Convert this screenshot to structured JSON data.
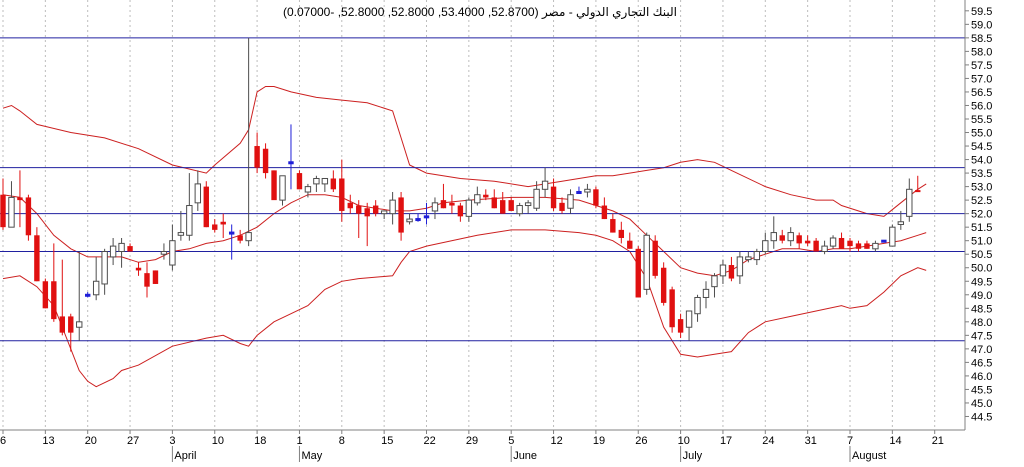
{
  "chart_data": {
    "type": "candlestick",
    "title": "البنك التجاري الدولي - مصر (52.8700, 53.4000, 52.8000, 52.8000, -0.07000)",
    "ylim": [
      44.0,
      59.9
    ],
    "y_ticks": [
      "44.5",
      "45.0",
      "45.5",
      "46.0",
      "46.5",
      "47.0",
      "47.5",
      "48.0",
      "48.5",
      "49.0",
      "49.5",
      "50.0",
      "50.5",
      "51.0",
      "51.5",
      "52.0",
      "52.5",
      "53.0",
      "53.5",
      "54.0",
      "54.5",
      "55.0",
      "55.5",
      "56.0",
      "56.5",
      "57.0",
      "57.5",
      "58.0",
      "58.5",
      "59.0",
      "59.5"
    ],
    "x_ticks": [
      "6",
      "13",
      "20",
      "27",
      "3",
      "10",
      "18",
      "1",
      "8",
      "15",
      "22",
      "29",
      "5",
      "12",
      "19",
      "26",
      "10",
      "17",
      "24",
      "31",
      "7",
      "14",
      "21"
    ],
    "x_ticks_slot": [
      0,
      5,
      10,
      15,
      20,
      25,
      30,
      35,
      40,
      45,
      50,
      55,
      60,
      65,
      70,
      75,
      80,
      85,
      90,
      95,
      100,
      105,
      110
    ],
    "months": [
      "April",
      "May",
      "June",
      "July",
      "August"
    ],
    "months_slot": [
      20,
      35,
      60,
      80,
      100
    ],
    "horizontal_lines": [
      58.5,
      53.7,
      52.0,
      50.6,
      47.3
    ],
    "colors": {
      "up": "#ffffff",
      "down": "#e01010",
      "outline": "#4d4d4d",
      "doji": "#1f1fd8",
      "band": "#cc2020",
      "hline": "#2020a0",
      "grid": "#bdbdbd",
      "axis": "#808080"
    },
    "candles": [
      {
        "o": 52.7,
        "h": 53.3,
        "l": 51.4,
        "c": 51.5
      },
      {
        "o": 51.5,
        "h": 53.2,
        "l": 51.5,
        "c": 52.6
      },
      {
        "o": 52.6,
        "h": 53.6,
        "l": 51.5,
        "c": 52.5
      },
      {
        "o": 52.6,
        "h": 52.7,
        "l": 51.0,
        "c": 51.2
      },
      {
        "o": 51.2,
        "h": 51.5,
        "l": 49.5,
        "c": 49.5
      },
      {
        "o": 49.5,
        "h": 49.6,
        "l": 48.5,
        "c": 48.5
      },
      {
        "o": 49.5,
        "h": 50.9,
        "l": 48.0,
        "c": 48.1
      },
      {
        "o": 48.2,
        "h": 50.3,
        "l": 47.5,
        "c": 47.6
      },
      {
        "o": 48.2,
        "h": 48.3,
        "l": 46.9,
        "c": 47.6
      },
      {
        "o": 47.8,
        "h": 50.6,
        "l": 47.3,
        "c": 48.0
      },
      {
        "o": 49.0,
        "h": 49.1,
        "l": 48.9,
        "c": 49.0
      },
      {
        "o": 49.0,
        "h": 50.4,
        "l": 48.8,
        "c": 49.5
      },
      {
        "o": 49.4,
        "h": 50.7,
        "l": 49.0,
        "c": 50.6
      },
      {
        "o": 50.4,
        "h": 51.1,
        "l": 50.1,
        "c": 50.8
      },
      {
        "o": 50.6,
        "h": 51.1,
        "l": 50.0,
        "c": 50.9
      },
      {
        "o": 50.8,
        "h": 50.9,
        "l": 50.6,
        "c": 50.6
      },
      {
        "o": 50.0,
        "h": 50.2,
        "l": 49.7,
        "c": 49.9
      },
      {
        "o": 49.8,
        "h": 50.2,
        "l": 48.9,
        "c": 49.3
      },
      {
        "o": 49.9,
        "h": 49.9,
        "l": 49.4,
        "c": 49.4
      },
      {
        "o": 50.5,
        "h": 50.9,
        "l": 50.3,
        "c": 50.6
      },
      {
        "o": 50.1,
        "h": 51.6,
        "l": 49.9,
        "c": 51.0
      },
      {
        "o": 51.2,
        "h": 52.1,
        "l": 51.0,
        "c": 51.3
      },
      {
        "o": 51.2,
        "h": 53.5,
        "l": 51.0,
        "c": 52.3
      },
      {
        "o": 52.4,
        "h": 53.6,
        "l": 52.1,
        "c": 53.1
      },
      {
        "o": 53.0,
        "h": 53.2,
        "l": 51.5,
        "c": 51.5
      },
      {
        "o": 51.6,
        "h": 51.8,
        "l": 51.3,
        "c": 51.4
      },
      {
        "o": 51.7,
        "h": 52.0,
        "l": 51.1,
        "c": 51.6
      },
      {
        "o": 51.3,
        "h": 51.6,
        "l": 50.3,
        "c": 51.3
      },
      {
        "o": 51.2,
        "h": 51.4,
        "l": 50.9,
        "c": 51.0
      },
      {
        "o": 51.0,
        "h": 58.5,
        "l": 50.8,
        "c": 51.3
      },
      {
        "o": 54.5,
        "h": 55.0,
        "l": 53.5,
        "c": 53.7
      },
      {
        "o": 54.4,
        "h": 54.6,
        "l": 53.3,
        "c": 53.5
      },
      {
        "o": 53.6,
        "h": 53.6,
        "l": 52.6,
        "c": 52.5
      },
      {
        "o": 52.5,
        "h": 53.4,
        "l": 52.3,
        "c": 53.4
      },
      {
        "o": 53.9,
        "h": 55.3,
        "l": 52.9,
        "c": 53.9
      },
      {
        "o": 53.5,
        "h": 53.6,
        "l": 52.9,
        "c": 52.9
      },
      {
        "o": 52.8,
        "h": 53.1,
        "l": 52.6,
        "c": 53.0
      },
      {
        "o": 53.1,
        "h": 53.4,
        "l": 52.8,
        "c": 53.3
      },
      {
        "o": 53.1,
        "h": 53.3,
        "l": 52.8,
        "c": 53.3
      },
      {
        "o": 53.3,
        "h": 53.6,
        "l": 52.8,
        "c": 52.9
      },
      {
        "o": 53.3,
        "h": 54.0,
        "l": 51.7,
        "c": 52.1
      },
      {
        "o": 52.4,
        "h": 52.7,
        "l": 52.0,
        "c": 52.2
      },
      {
        "o": 52.3,
        "h": 52.5,
        "l": 51.1,
        "c": 52.0
      },
      {
        "o": 52.2,
        "h": 52.4,
        "l": 50.8,
        "c": 51.9
      },
      {
        "o": 52.3,
        "h": 52.5,
        "l": 51.9,
        "c": 52.0
      },
      {
        "o": 52.0,
        "h": 52.1,
        "l": 51.8,
        "c": 52.1
      },
      {
        "o": 52.0,
        "h": 52.8,
        "l": 51.6,
        "c": 52.5
      },
      {
        "o": 52.6,
        "h": 52.8,
        "l": 51.0,
        "c": 51.3
      },
      {
        "o": 51.7,
        "h": 52.0,
        "l": 51.6,
        "c": 51.8
      },
      {
        "o": 51.8,
        "h": 52.0,
        "l": 51.7,
        "c": 51.8
      },
      {
        "o": 51.9,
        "h": 52.4,
        "l": 51.6,
        "c": 51.9
      },
      {
        "o": 52.1,
        "h": 52.6,
        "l": 51.8,
        "c": 52.4
      },
      {
        "o": 52.5,
        "h": 53.1,
        "l": 52.2,
        "c": 52.2
      },
      {
        "o": 52.4,
        "h": 52.7,
        "l": 52.0,
        "c": 52.3
      },
      {
        "o": 52.3,
        "h": 52.4,
        "l": 51.7,
        "c": 51.9
      },
      {
        "o": 51.9,
        "h": 52.6,
        "l": 51.7,
        "c": 52.5
      },
      {
        "o": 52.4,
        "h": 53.0,
        "l": 52.3,
        "c": 52.7
      },
      {
        "o": 52.7,
        "h": 52.9,
        "l": 52.5,
        "c": 52.6
      },
      {
        "o": 52.6,
        "h": 52.9,
        "l": 52.2,
        "c": 52.2
      },
      {
        "o": 52.5,
        "h": 52.8,
        "l": 52.0,
        "c": 52.0
      },
      {
        "o": 52.5,
        "h": 52.6,
        "l": 52.1,
        "c": 52.1
      },
      {
        "o": 52.0,
        "h": 52.4,
        "l": 51.9,
        "c": 52.3
      },
      {
        "o": 52.3,
        "h": 52.5,
        "l": 52.0,
        "c": 52.4
      },
      {
        "o": 52.2,
        "h": 53.2,
        "l": 52.1,
        "c": 52.9
      },
      {
        "o": 52.9,
        "h": 53.7,
        "l": 52.6,
        "c": 53.2
      },
      {
        "o": 53.0,
        "h": 53.3,
        "l": 52.1,
        "c": 52.2
      },
      {
        "o": 52.4,
        "h": 52.6,
        "l": 52.0,
        "c": 52.1
      },
      {
        "o": 52.2,
        "h": 52.9,
        "l": 52.0,
        "c": 52.7
      },
      {
        "o": 52.8,
        "h": 53.0,
        "l": 52.8,
        "c": 52.8
      },
      {
        "o": 52.8,
        "h": 53.1,
        "l": 52.6,
        "c": 52.9
      },
      {
        "o": 52.9,
        "h": 53.0,
        "l": 52.2,
        "c": 52.3
      },
      {
        "o": 52.3,
        "h": 52.6,
        "l": 51.8,
        "c": 51.8
      },
      {
        "o": 51.8,
        "h": 52.0,
        "l": 51.3,
        "c": 51.3
      },
      {
        "o": 51.4,
        "h": 51.7,
        "l": 50.9,
        "c": 51.1
      },
      {
        "o": 51.0,
        "h": 51.3,
        "l": 50.7,
        "c": 50.7
      },
      {
        "o": 50.7,
        "h": 50.8,
        "l": 48.9,
        "c": 48.9
      },
      {
        "o": 49.2,
        "h": 51.3,
        "l": 49.0,
        "c": 51.2
      },
      {
        "o": 51.0,
        "h": 51.2,
        "l": 49.6,
        "c": 49.7
      },
      {
        "o": 50.0,
        "h": 50.2,
        "l": 48.6,
        "c": 48.7
      },
      {
        "o": 49.2,
        "h": 49.3,
        "l": 47.6,
        "c": 47.8
      },
      {
        "o": 48.1,
        "h": 48.3,
        "l": 47.4,
        "c": 47.6
      },
      {
        "o": 47.8,
        "h": 48.4,
        "l": 47.3,
        "c": 48.4
      },
      {
        "o": 48.3,
        "h": 49.0,
        "l": 48.0,
        "c": 48.9
      },
      {
        "o": 48.9,
        "h": 49.5,
        "l": 48.5,
        "c": 49.2
      },
      {
        "o": 49.3,
        "h": 49.8,
        "l": 48.9,
        "c": 49.7
      },
      {
        "o": 49.7,
        "h": 50.3,
        "l": 49.4,
        "c": 50.1
      },
      {
        "o": 50.1,
        "h": 50.4,
        "l": 49.5,
        "c": 49.6
      },
      {
        "o": 49.7,
        "h": 50.6,
        "l": 49.4,
        "c": 50.4
      },
      {
        "o": 50.3,
        "h": 50.6,
        "l": 50.2,
        "c": 50.4
      },
      {
        "o": 50.3,
        "h": 50.7,
        "l": 50.1,
        "c": 50.6
      },
      {
        "o": 50.6,
        "h": 51.3,
        "l": 50.5,
        "c": 51.0
      },
      {
        "o": 51.0,
        "h": 51.9,
        "l": 50.7,
        "c": 51.3
      },
      {
        "o": 51.2,
        "h": 51.4,
        "l": 50.9,
        "c": 51.0
      },
      {
        "o": 51.0,
        "h": 51.5,
        "l": 50.8,
        "c": 51.3
      },
      {
        "o": 51.2,
        "h": 51.3,
        "l": 50.7,
        "c": 50.9
      },
      {
        "o": 51.0,
        "h": 51.2,
        "l": 50.8,
        "c": 50.9
      },
      {
        "o": 51.0,
        "h": 51.1,
        "l": 50.6,
        "c": 50.6
      },
      {
        "o": 50.6,
        "h": 51.0,
        "l": 50.5,
        "c": 50.8
      },
      {
        "o": 50.8,
        "h": 51.2,
        "l": 50.7,
        "c": 51.1
      },
      {
        "o": 51.1,
        "h": 51.3,
        "l": 50.7,
        "c": 50.7
      },
      {
        "o": 51.0,
        "h": 51.1,
        "l": 50.6,
        "c": 50.8
      },
      {
        "o": 50.9,
        "h": 51.0,
        "l": 50.6,
        "c": 50.7
      },
      {
        "o": 50.9,
        "h": 51.0,
        "l": 50.7,
        "c": 50.7
      },
      {
        "o": 50.7,
        "h": 51.0,
        "l": 50.6,
        "c": 50.9
      },
      {
        "o": 51.0,
        "h": 51.0,
        "l": 51.0,
        "c": 51.0
      },
      {
        "o": 50.8,
        "h": 51.6,
        "l": 50.8,
        "c": 51.5
      },
      {
        "o": 51.6,
        "h": 52.1,
        "l": 51.4,
        "c": 51.7
      },
      {
        "o": 51.9,
        "h": 53.3,
        "l": 51.7,
        "c": 52.9
      },
      {
        "o": 52.87,
        "h": 53.4,
        "l": 52.8,
        "c": 52.8
      }
    ],
    "upper_band": [
      [
        0,
        55.9
      ],
      [
        1,
        56.0
      ],
      [
        2,
        55.8
      ],
      [
        4,
        55.3
      ],
      [
        8,
        55.0
      ],
      [
        12,
        54.8
      ],
      [
        16,
        54.4
      ],
      [
        20,
        53.8
      ],
      [
        24,
        53.5
      ],
      [
        25,
        53.8
      ],
      [
        28,
        54.6
      ],
      [
        29,
        55.1
      ],
      [
        30,
        56.5
      ],
      [
        31,
        56.7
      ],
      [
        32,
        56.7
      ],
      [
        34,
        56.5
      ],
      [
        37,
        56.3
      ],
      [
        40,
        56.2
      ],
      [
        43,
        56.1
      ],
      [
        46,
        55.8
      ],
      [
        47,
        54.8
      ],
      [
        48,
        53.8
      ],
      [
        50,
        53.5
      ],
      [
        54,
        53.3
      ],
      [
        58,
        53.2
      ],
      [
        62,
        53.0
      ],
      [
        66,
        53.2
      ],
      [
        70,
        53.4
      ],
      [
        72,
        53.4
      ],
      [
        76,
        53.6
      ],
      [
        78,
        53.7
      ],
      [
        80,
        53.9
      ],
      [
        82,
        54.0
      ],
      [
        84,
        53.9
      ],
      [
        86,
        53.6
      ],
      [
        90,
        53.0
      ],
      [
        93,
        52.7
      ],
      [
        96,
        52.5
      ],
      [
        98,
        52.5
      ],
      [
        99,
        52.3
      ],
      [
        102,
        52.0
      ],
      [
        104,
        51.9
      ],
      [
        106,
        52.4
      ],
      [
        108,
        52.9
      ],
      [
        109,
        53.1
      ]
    ],
    "lower_band": [
      [
        0,
        49.6
      ],
      [
        2,
        49.7
      ],
      [
        4,
        49.3
      ],
      [
        6,
        48.6
      ],
      [
        8,
        47.0
      ],
      [
        9,
        46.2
      ],
      [
        10,
        45.8
      ],
      [
        11,
        45.6
      ],
      [
        13,
        45.9
      ],
      [
        14,
        46.2
      ],
      [
        16,
        46.4
      ],
      [
        20,
        47.1
      ],
      [
        24,
        47.4
      ],
      [
        26,
        47.5
      ],
      [
        28,
        47.2
      ],
      [
        29,
        47.1
      ],
      [
        30,
        47.5
      ],
      [
        32,
        48.0
      ],
      [
        34,
        48.3
      ],
      [
        36,
        48.6
      ],
      [
        38,
        49.2
      ],
      [
        40,
        49.5
      ],
      [
        42,
        49.6
      ],
      [
        46,
        49.7
      ],
      [
        47,
        50.2
      ],
      [
        48,
        50.6
      ],
      [
        50,
        50.8
      ],
      [
        56,
        51.2
      ],
      [
        60,
        51.4
      ],
      [
        64,
        51.4
      ],
      [
        68,
        51.3
      ],
      [
        70,
        51.2
      ],
      [
        72,
        51.0
      ],
      [
        74,
        50.6
      ],
      [
        76,
        49.6
      ],
      [
        78,
        47.8
      ],
      [
        80,
        46.8
      ],
      [
        82,
        46.7
      ],
      [
        84,
        46.8
      ],
      [
        86,
        46.9
      ],
      [
        88,
        47.6
      ],
      [
        90,
        48.0
      ],
      [
        93,
        48.2
      ],
      [
        96,
        48.4
      ],
      [
        99,
        48.6
      ],
      [
        100,
        48.5
      ],
      [
        102,
        48.6
      ],
      [
        104,
        49.1
      ],
      [
        106,
        49.7
      ],
      [
        108,
        50.0
      ],
      [
        109,
        49.9
      ]
    ],
    "middle_band": [
      [
        0,
        52.7
      ],
      [
        2,
        52.6
      ],
      [
        4,
        52.0
      ],
      [
        6,
        51.2
      ],
      [
        8,
        50.7
      ],
      [
        10,
        50.4
      ],
      [
        12,
        50.4
      ],
      [
        14,
        50.4
      ],
      [
        16,
        50.2
      ],
      [
        18,
        50.3
      ],
      [
        20,
        50.6
      ],
      [
        22,
        50.7
      ],
      [
        24,
        50.9
      ],
      [
        26,
        51.0
      ],
      [
        28,
        51.2
      ],
      [
        30,
        51.5
      ],
      [
        32,
        52.0
      ],
      [
        34,
        52.4
      ],
      [
        36,
        52.7
      ],
      [
        38,
        52.7
      ],
      [
        40,
        52.6
      ],
      [
        42,
        52.3
      ],
      [
        44,
        52.2
      ],
      [
        46,
        52.1
      ],
      [
        48,
        52.1
      ],
      [
        50,
        52.2
      ],
      [
        52,
        52.4
      ],
      [
        55,
        52.5
      ],
      [
        60,
        52.6
      ],
      [
        64,
        52.6
      ],
      [
        68,
        52.5
      ],
      [
        70,
        52.3
      ],
      [
        72,
        52.1
      ],
      [
        74,
        51.8
      ],
      [
        76,
        51.2
      ],
      [
        78,
        50.6
      ],
      [
        80,
        50.0
      ],
      [
        82,
        49.8
      ],
      [
        84,
        49.7
      ],
      [
        86,
        49.9
      ],
      [
        88,
        50.3
      ],
      [
        90,
        50.5
      ],
      [
        92,
        50.7
      ],
      [
        94,
        50.7
      ],
      [
        96,
        50.6
      ],
      [
        98,
        50.7
      ],
      [
        100,
        50.7
      ],
      [
        102,
        50.8
      ],
      [
        104,
        50.9
      ],
      [
        106,
        51.0
      ],
      [
        108,
        51.2
      ],
      [
        109,
        51.3
      ]
    ]
  }
}
